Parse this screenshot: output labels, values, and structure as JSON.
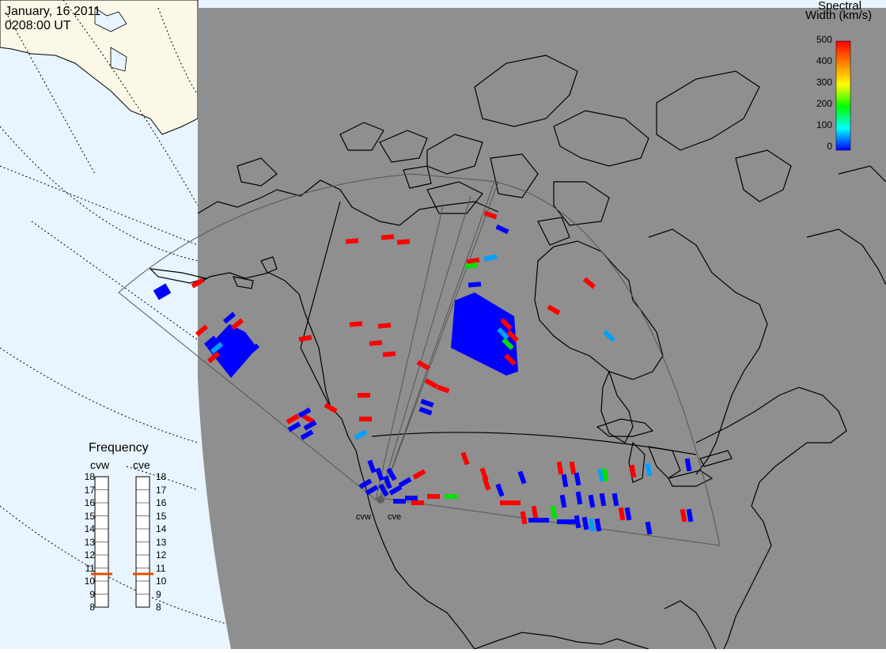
{
  "header": {
    "date": "January, 16 2011",
    "time": "0208:00 UT"
  },
  "legend": {
    "title_line1": "Spectral",
    "title_line2": "Width (km/s)",
    "ticks": [
      "500",
      "400",
      "300",
      "200",
      "100",
      "0"
    ],
    "colors": [
      "#ff0000",
      "#ff7f00",
      "#ffff00",
      "#00ff00",
      "#00ffff",
      "#0000ff"
    ]
  },
  "frequency": {
    "title": "Frequency",
    "radars": [
      {
        "name": "cvw",
        "value_mhz": 10.7
      },
      {
        "name": "cve",
        "value_mhz": 10.7
      }
    ],
    "ticks": [
      "18",
      "17",
      "16",
      "15",
      "14",
      "13",
      "12",
      "11",
      "10",
      "9",
      "8"
    ],
    "marker_color": "#e05000"
  },
  "sites": [
    "cvw",
    "cve"
  ],
  "colors": {
    "land_shade": "#8f8f8f",
    "ocean": "#e8f4ff",
    "sunlit_land": "#fbf8e8",
    "red": "#ff0000",
    "blue": "#0000ff",
    "cyan": "#00a0ff",
    "green": "#00e000"
  }
}
